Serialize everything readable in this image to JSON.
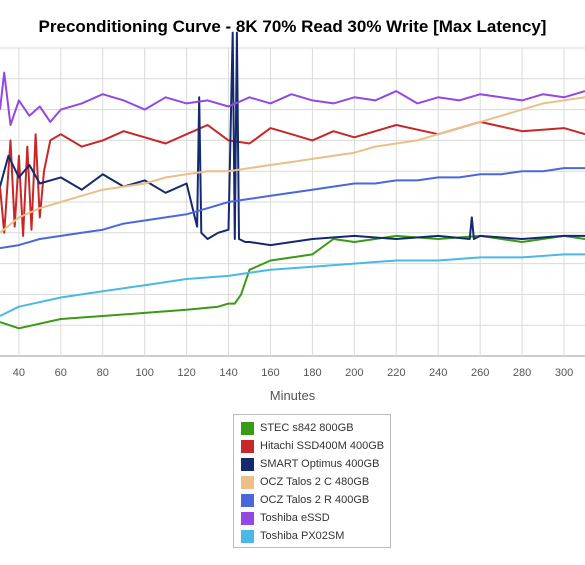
{
  "chart_data": {
    "type": "line",
    "title": "Preconditioning Curve - 8K 70% Read 30% Write [Max Latency]",
    "xlabel": "Minutes",
    "ylabel": "",
    "xlim": [
      31,
      310
    ],
    "ylim": [
      0,
      10
    ],
    "xticks": [
      40,
      60,
      80,
      100,
      120,
      140,
      160,
      180,
      200,
      220,
      240,
      260,
      280,
      300
    ],
    "grid": true,
    "legend_position": "bottom",
    "series": [
      {
        "name": "STEC s842 800GB",
        "color": "#3a9a17",
        "x": [
          31,
          40,
          60,
          80,
          100,
          120,
          135,
          140,
          143,
          146,
          150,
          160,
          180,
          190,
          200,
          220,
          240,
          260,
          280,
          300,
          310
        ],
        "y": [
          1.1,
          0.9,
          1.2,
          1.3,
          1.4,
          1.5,
          1.6,
          1.7,
          1.7,
          2.0,
          2.8,
          3.1,
          3.3,
          3.8,
          3.7,
          3.9,
          3.8,
          3.9,
          3.7,
          3.9,
          3.8
        ]
      },
      {
        "name": "Hitachi SSD400M 400GB",
        "color": "#c62828",
        "x": [
          31,
          33,
          36,
          38,
          40,
          42,
          44,
          46,
          48,
          50,
          52,
          55,
          60,
          70,
          80,
          90,
          100,
          110,
          120,
          130,
          140,
          150,
          160,
          170,
          180,
          190,
          200,
          210,
          220,
          240,
          260,
          280,
          300,
          310
        ],
        "y": [
          5.5,
          4.0,
          7.0,
          4.2,
          6.5,
          3.9,
          6.8,
          4.1,
          7.2,
          4.5,
          6.0,
          7.0,
          7.2,
          6.8,
          7.0,
          7.3,
          7.1,
          6.9,
          7.2,
          7.5,
          7.0,
          6.9,
          7.4,
          7.2,
          7.0,
          7.3,
          7.1,
          7.3,
          7.5,
          7.2,
          7.6,
          7.3,
          7.4,
          7.2
        ]
      },
      {
        "name": "SMART Optimus 400GB",
        "color": "#142a6e",
        "x": [
          31,
          35,
          40,
          45,
          50,
          60,
          70,
          80,
          90,
          100,
          110,
          120,
          125,
          126,
          127,
          130,
          135,
          140,
          142,
          143,
          144,
          145,
          148,
          150,
          160,
          180,
          200,
          220,
          240,
          255,
          256,
          257,
          260,
          280,
          300,
          310
        ],
        "y": [
          5.5,
          6.5,
          5.8,
          6.2,
          5.6,
          5.8,
          5.4,
          5.9,
          5.5,
          5.7,
          5.3,
          5.6,
          4.2,
          8.4,
          4.0,
          3.8,
          4.0,
          4.1,
          10.5,
          3.8,
          10.5,
          3.8,
          3.7,
          3.7,
          3.6,
          3.8,
          3.9,
          3.8,
          3.9,
          3.8,
          4.5,
          3.8,
          3.9,
          3.8,
          3.9,
          3.9
        ]
      },
      {
        "name": "OCZ Talos 2 C 480GB",
        "color": "#ebbf87",
        "x": [
          31,
          40,
          50,
          60,
          70,
          80,
          90,
          100,
          110,
          120,
          130,
          140,
          150,
          160,
          170,
          180,
          190,
          200,
          210,
          220,
          230,
          240,
          250,
          260,
          270,
          280,
          290,
          300,
          310
        ],
        "y": [
          4.0,
          4.5,
          4.8,
          5.0,
          5.2,
          5.4,
          5.5,
          5.6,
          5.8,
          5.9,
          6.0,
          6.0,
          6.1,
          6.2,
          6.3,
          6.4,
          6.5,
          6.6,
          6.8,
          6.9,
          7.0,
          7.2,
          7.4,
          7.6,
          7.8,
          8.0,
          8.2,
          8.3,
          8.4
        ]
      },
      {
        "name": "OCZ Talos 2 R 400GB",
        "color": "#4a67dc",
        "x": [
          31,
          40,
          50,
          60,
          70,
          80,
          90,
          100,
          110,
          120,
          130,
          140,
          150,
          160,
          170,
          180,
          190,
          200,
          210,
          220,
          230,
          240,
          250,
          260,
          270,
          280,
          290,
          300,
          310
        ],
        "y": [
          3.5,
          3.6,
          3.8,
          3.9,
          4.0,
          4.1,
          4.3,
          4.4,
          4.5,
          4.6,
          4.8,
          5.0,
          5.1,
          5.2,
          5.3,
          5.4,
          5.5,
          5.6,
          5.6,
          5.7,
          5.7,
          5.8,
          5.8,
          5.9,
          5.9,
          6.0,
          6.0,
          6.1,
          6.1
        ]
      },
      {
        "name": "Toshiba eSSD",
        "color": "#9448e3",
        "x": [
          31,
          33,
          36,
          40,
          45,
          50,
          55,
          60,
          70,
          80,
          90,
          100,
          110,
          120,
          130,
          140,
          150,
          160,
          170,
          180,
          190,
          200,
          210,
          220,
          230,
          240,
          250,
          260,
          270,
          280,
          290,
          300,
          310
        ],
        "y": [
          8.0,
          9.2,
          7.5,
          8.3,
          7.8,
          8.1,
          7.6,
          8.0,
          8.2,
          8.5,
          8.3,
          8.0,
          8.4,
          8.2,
          8.3,
          8.1,
          8.4,
          8.2,
          8.5,
          8.3,
          8.2,
          8.4,
          8.3,
          8.6,
          8.2,
          8.4,
          8.3,
          8.5,
          8.4,
          8.3,
          8.5,
          8.4,
          8.6
        ]
      },
      {
        "name": "Toshiba PX02SM",
        "color": "#4ab9e6",
        "x": [
          31,
          40,
          60,
          80,
          100,
          120,
          140,
          150,
          160,
          180,
          200,
          220,
          240,
          260,
          280,
          300,
          310
        ],
        "y": [
          1.3,
          1.6,
          1.9,
          2.1,
          2.3,
          2.5,
          2.6,
          2.7,
          2.8,
          2.9,
          3.0,
          3.1,
          3.1,
          3.2,
          3.2,
          3.3,
          3.3
        ]
      }
    ]
  }
}
